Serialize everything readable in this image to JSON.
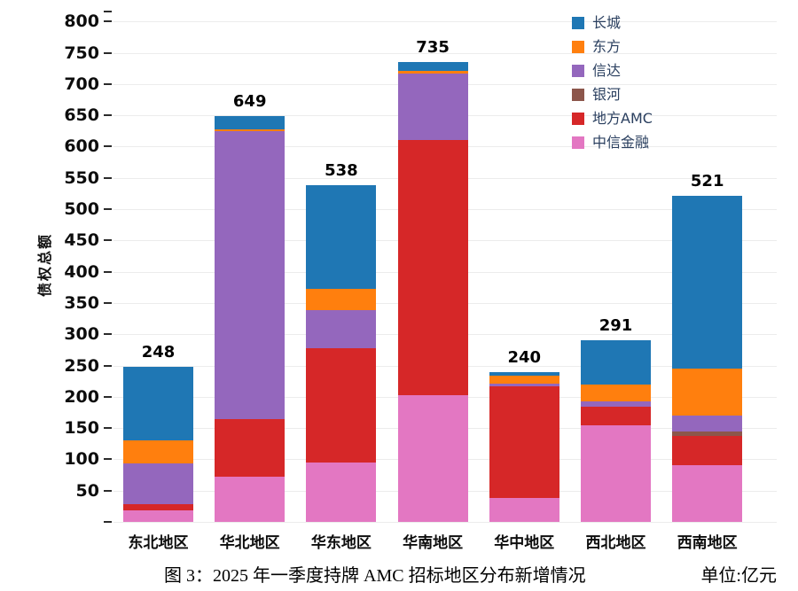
{
  "figure": {
    "caption": "图 3：2025 年一季度持牌 AMC 招标地区分布新增情况",
    "unit_label": "单位:亿元"
  },
  "chart_data": {
    "type": "bar",
    "stacked": true,
    "title": "",
    "xlabel": "",
    "ylabel": "债权总额",
    "unit": "亿元",
    "ylim": [
      0,
      815
    ],
    "y_ticks": [
      0,
      50,
      100,
      150,
      200,
      250,
      300,
      350,
      400,
      450,
      500,
      550,
      600,
      650,
      700,
      750,
      800
    ],
    "grid": "horizontal",
    "legend_position": "top-right",
    "categories": [
      "东北地区",
      "华北地区",
      "华东地区",
      "华南地区",
      "华中地区",
      "西北地区",
      "西南地区"
    ],
    "totals": [
      248,
      649,
      538,
      735,
      240,
      291,
      521
    ],
    "series": [
      {
        "name": "长城",
        "color": "#1f77b4",
        "values": [
          118,
          21,
          166,
          14,
          6,
          71,
          276
        ]
      },
      {
        "name": "东方",
        "color": "#ff7f0e",
        "values": [
          36,
          3,
          34,
          4,
          13,
          27,
          75
        ]
      },
      {
        "name": "信达",
        "color": "#9467bd",
        "values": [
          66,
          460,
          61,
          107,
          4,
          9,
          25
        ]
      },
      {
        "name": "银河",
        "color": "#8c564b",
        "values": [
          0,
          0,
          0,
          0,
          0,
          0,
          8
        ]
      },
      {
        "name": "地方AMC",
        "color": "#d62728",
        "values": [
          9,
          93,
          182,
          407,
          179,
          29,
          47
        ]
      },
      {
        "name": "中信金融",
        "color": "#e377c2",
        "values": [
          19,
          72,
          95,
          203,
          38,
          155,
          90
        ]
      }
    ]
  }
}
